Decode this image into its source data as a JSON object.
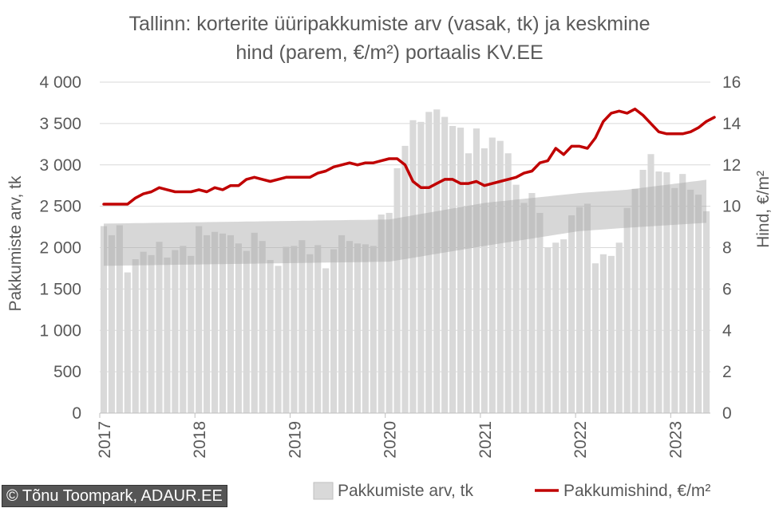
{
  "chart_data": {
    "type": "bar",
    "title_lines": [
      "Tallinn: korterite üüripakkumiste arv (vasak, tk) ja keskmine",
      "hind (parem, €/m²) portaalis KV.EE"
    ],
    "ylabel_left": "Pakkumiste arv, tk",
    "ylabel_right": "Hind, €/m²",
    "y_left": {
      "min": 0,
      "max": 4000,
      "step": 500,
      "tick_labels": [
        "0",
        "500",
        "1 000",
        "1 500",
        "2 000",
        "2 500",
        "3 000",
        "3 500",
        "4 000"
      ]
    },
    "y_right": {
      "min": 0,
      "max": 16,
      "step": 2,
      "tick_labels": [
        "0",
        "2",
        "4",
        "6",
        "8",
        "10",
        "12",
        "14",
        "16"
      ]
    },
    "x_tick_labels": [
      "2017",
      "2018",
      "2019",
      "2020",
      "2021",
      "2022",
      "2023"
    ],
    "start": "2017-01",
    "grid": true,
    "legend_position": "bottom",
    "series": [
      {
        "name": "Pakkumiste arv, tk",
        "axis": "left",
        "kind": "bar",
        "color": "#d9d9d9",
        "values": [
          2260,
          2150,
          2270,
          1700,
          1860,
          1950,
          1910,
          2070,
          1880,
          1970,
          2020,
          1900,
          2260,
          2150,
          2190,
          2170,
          2150,
          2050,
          1960,
          2180,
          2080,
          1850,
          1780,
          2010,
          2020,
          2090,
          1920,
          2030,
          1750,
          1980,
          2150,
          2080,
          2050,
          2040,
          2020,
          2400,
          2420,
          2960,
          3230,
          3540,
          3520,
          3640,
          3670,
          3580,
          3470,
          3450,
          3140,
          3440,
          3200,
          3330,
          3290,
          3140,
          2760,
          2540,
          2660,
          2420,
          2000,
          2060,
          2100,
          2390,
          2490,
          2530,
          1810,
          1920,
          1900,
          2060,
          2480,
          2710,
          2940,
          3130,
          2920,
          2910,
          2720,
          2890,
          2700,
          2640,
          2440
        ]
      },
      {
        "name": "Pakkumishind, €/m²",
        "axis": "right",
        "kind": "line",
        "color": "#c00000",
        "values": [
          10.1,
          10.1,
          10.1,
          10.1,
          10.4,
          10.6,
          10.7,
          10.9,
          10.8,
          10.7,
          10.7,
          10.7,
          10.8,
          10.7,
          10.9,
          10.8,
          11.0,
          11.0,
          11.3,
          11.4,
          11.3,
          11.2,
          11.3,
          11.4,
          11.4,
          11.4,
          11.4,
          11.6,
          11.7,
          11.9,
          12.0,
          12.1,
          12.0,
          12.1,
          12.1,
          12.2,
          12.3,
          12.3,
          12.0,
          11.2,
          10.9,
          10.9,
          11.1,
          11.3,
          11.3,
          11.1,
          11.1,
          11.2,
          11.0,
          11.1,
          11.2,
          11.3,
          11.4,
          11.6,
          11.7,
          12.1,
          12.2,
          12.8,
          12.5,
          12.9,
          12.9,
          12.8,
          13.3,
          14.1,
          14.5,
          14.6,
          14.5,
          14.7,
          14.4,
          14.0,
          13.6,
          13.5,
          13.5,
          13.5,
          13.6,
          13.8,
          14.1,
          14.3
        ]
      }
    ],
    "band": {
      "axis": "left",
      "color": "#a6a6a6",
      "lower_points": [
        [
          0,
          1780
        ],
        [
          36,
          1830
        ],
        [
          48,
          2020
        ],
        [
          60,
          2200
        ],
        [
          66,
          2240
        ],
        [
          76,
          2300
        ]
      ],
      "upper_points": [
        [
          0,
          2290
        ],
        [
          36,
          2340
        ],
        [
          48,
          2540
        ],
        [
          60,
          2660
        ],
        [
          66,
          2700
        ],
        [
          76,
          2820
        ]
      ]
    }
  },
  "credit": "© Tõnu Toompark, ADAUR.EE"
}
